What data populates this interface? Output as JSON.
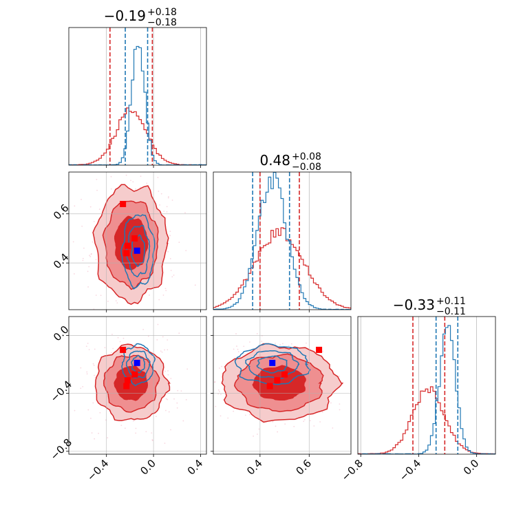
{
  "chart_data": {
    "type": "corner",
    "parameters": [
      {
        "title_center": "−0.19",
        "title_plus": "+0.18",
        "title_minus": "−0.18",
        "range": [
          -0.72,
          0.45
        ],
        "ticks": [
          {
            "v": -0.4,
            "label": "−0.4"
          },
          {
            "v": 0.0,
            "label": "0.0"
          },
          {
            "v": 0.4,
            "label": "0.4"
          }
        ]
      },
      {
        "title_center": "0.48",
        "title_plus": "+0.08",
        "title_minus": "−0.08",
        "range": [
          0.21,
          0.77
        ],
        "ticks": [
          {
            "v": 0.4,
            "label": "0.4"
          },
          {
            "v": 0.6,
            "label": "0.6"
          }
        ]
      },
      {
        "title_center": "−0.33",
        "title_plus": "+0.11",
        "title_minus": "−0.11",
        "range": [
          -0.82,
          0.13
        ],
        "ticks": [
          {
            "v": -0.8,
            "label": "−0.8"
          },
          {
            "v": -0.4,
            "label": "−0.4"
          },
          {
            "v": 0.0,
            "label": "0.0"
          }
        ]
      }
    ],
    "series": [
      {
        "name": "red",
        "color": "#d62728",
        "mean": [
          -0.19,
          0.48,
          -0.33
        ],
        "std": [
          0.13,
          0.1,
          0.11
        ],
        "quantiles": [
          [
            -0.37,
            -0.01
          ],
          [
            0.4,
            0.56
          ],
          [
            -0.44,
            -0.22
          ]
        ]
      },
      {
        "name": "blue",
        "color": "#1f77b4",
        "mean": [
          -0.13,
          0.45,
          -0.2
        ],
        "std": [
          0.055,
          0.06,
          0.055
        ],
        "quantiles": [
          [
            -0.24,
            -0.05
          ],
          [
            0.37,
            0.52
          ],
          [
            -0.28,
            -0.13
          ]
        ]
      }
    ],
    "markers": [
      {
        "color": "#ff0000",
        "points": [
          [
            -0.26,
            0.64,
            -0.1
          ],
          [
            -0.16,
            0.5,
            -0.27
          ],
          [
            -0.22,
            0.47,
            -0.31
          ],
          [
            -0.23,
            0.44,
            -0.35
          ]
        ]
      },
      {
        "color": "#0000ff",
        "points": [
          [
            -0.14,
            0.45,
            -0.19
          ]
        ]
      }
    ],
    "grid": true
  }
}
